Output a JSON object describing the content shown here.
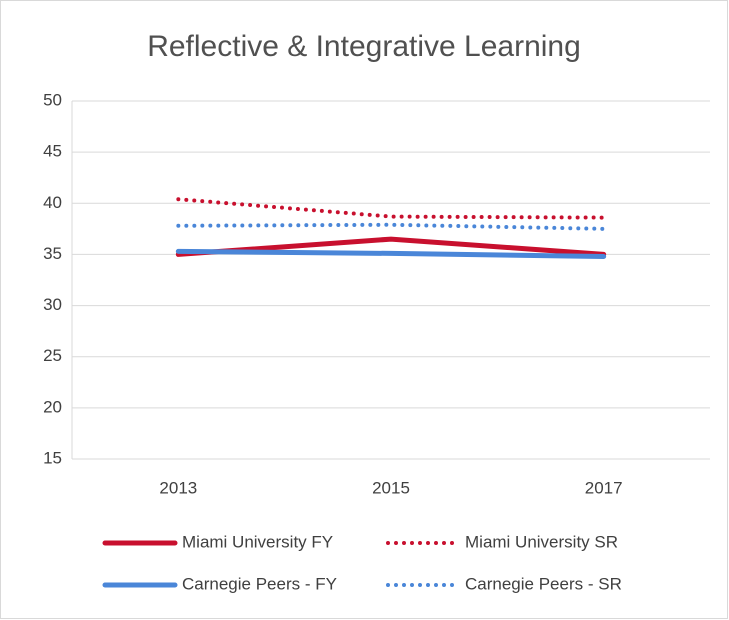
{
  "chart_data": {
    "type": "line",
    "title": "Reflective & Integrative Learning",
    "categories": [
      "2013",
      "2015",
      "2017"
    ],
    "series": [
      {
        "name": "Miami University FY",
        "color": "#c8102e",
        "style": "solid",
        "values": [
          35,
          36.5,
          35
        ]
      },
      {
        "name": "Miami University SR",
        "color": "#c8102e",
        "style": "dotted",
        "values": [
          40.4,
          38.7,
          38.6
        ]
      },
      {
        "name": "Carnegie Peers - FY",
        "color": "#4a86d8",
        "style": "solid",
        "values": [
          35.3,
          35.1,
          34.8
        ]
      },
      {
        "name": "Carnegie Peers - SR",
        "color": "#4a86d8",
        "style": "dotted",
        "values": [
          37.8,
          37.9,
          37.5
        ]
      }
    ],
    "ylim": [
      15,
      50
    ],
    "yticks": [
      15,
      20,
      25,
      30,
      35,
      40,
      45,
      50
    ],
    "grid": true,
    "legend": "bottom"
  }
}
